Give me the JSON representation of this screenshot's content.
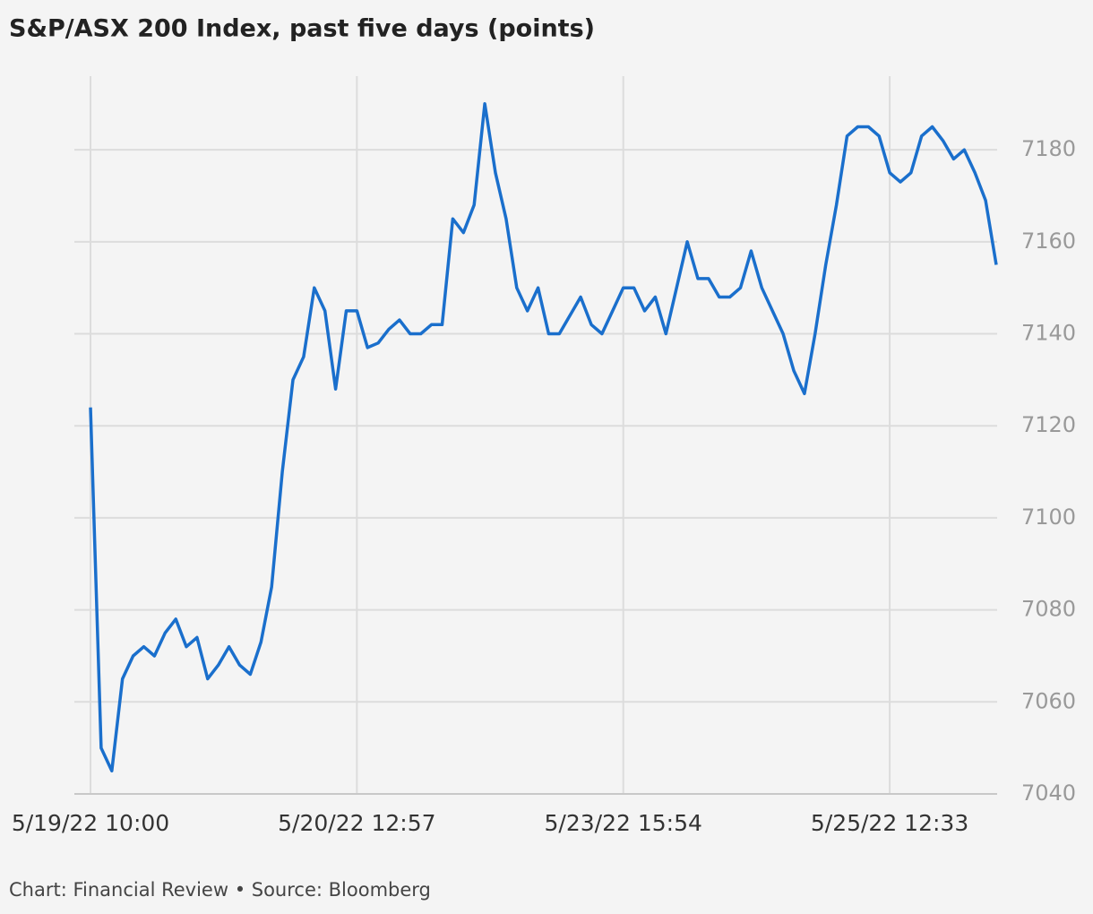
{
  "chart_data": {
    "type": "line",
    "title": "S&P/ASX 200 Index, past five days (points)",
    "source": "Chart: Financial Review • Source: Bloomberg",
    "categories": [
      "5/19/22 10:00",
      null,
      null,
      null,
      null,
      null,
      null,
      null,
      null,
      null,
      null,
      null,
      null,
      null,
      null,
      null,
      null,
      null,
      null,
      null,
      null,
      null,
      null,
      null,
      null,
      "5/20/22 12:57",
      null,
      null,
      null,
      null,
      null,
      null,
      null,
      null,
      null,
      null,
      null,
      null,
      null,
      null,
      null,
      null,
      null,
      null,
      null,
      null,
      null,
      null,
      null,
      null,
      "5/23/22 15:54",
      null,
      null,
      null,
      null,
      null,
      null,
      null,
      null,
      null,
      null,
      null,
      null,
      null,
      null,
      null,
      null,
      null,
      null,
      null,
      null,
      null,
      null,
      null,
      null,
      "5/25/22 12:33",
      null,
      null,
      null,
      null,
      null,
      null,
      null,
      null,
      null,
      null
    ],
    "values": [
      7124,
      7050,
      7045,
      7065,
      7070,
      7072,
      7070,
      7075,
      7078,
      7072,
      7074,
      7065,
      7068,
      7072,
      7068,
      7066,
      7073,
      7085,
      7110,
      7130,
      7135,
      7150,
      7145,
      7128,
      7145,
      7145,
      7137,
      7138,
      7141,
      7143,
      7140,
      7140,
      7142,
      7142,
      7165,
      7162,
      7168,
      7190,
      7175,
      7165,
      7150,
      7145,
      7150,
      7140,
      7140,
      7144,
      7148,
      7142,
      7140,
      7145,
      7150,
      7150,
      7145,
      7148,
      7140,
      7150,
      7160,
      7152,
      7152,
      7148,
      7148,
      7150,
      7158,
      7150,
      7145,
      7140,
      7132,
      7127,
      7140,
      7155,
      7168,
      7183,
      7185,
      7185,
      7183,
      7175,
      7173,
      7175,
      7183,
      7185,
      7182,
      7178,
      7180,
      7175,
      7169,
      7155
    ],
    "color": "#1a6fcc",
    "ylim": [
      7040,
      7196
    ],
    "yticks": [
      7040,
      7060,
      7080,
      7100,
      7120,
      7140,
      7160,
      7180
    ],
    "grid": true
  }
}
